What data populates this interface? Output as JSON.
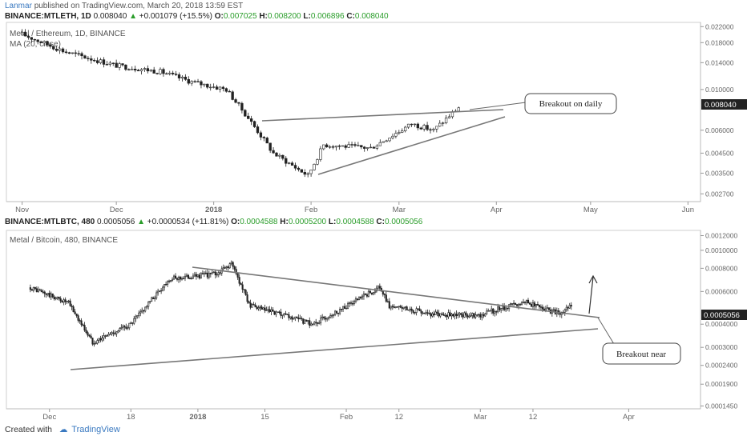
{
  "header": {
    "user": "Lanmar",
    "published_text": "published on TradingView.com, March 20, 2018 13:59 EST"
  },
  "panels": [
    {
      "symbol": "BINANCE:MTLETH, 1D",
      "last": "0.008040",
      "change": "+0.001079 (+15.5%)",
      "o": "0.007025",
      "h": "0.008200",
      "l": "0.006896",
      "c": "0.008040",
      "title": "Metal / Ethereum, 1D, BINANCE",
      "indicator": "MA (20, close)"
    },
    {
      "symbol": "BINANCE:MTLBTC, 480",
      "last": "0.0005056",
      "change": "+0.0000534 (+11.81%)",
      "o": "0.0004588",
      "h": "0.0005200",
      "l": "0.0004588",
      "c": "0.0005056",
      "title": "Metal / Bitcoin, 480, BINANCE"
    }
  ],
  "chart_data": [
    {
      "type": "candlestick",
      "title": "Metal / Ethereum, 1D, BINANCE",
      "y_scale": "log",
      "y_ticks": [
        "0.022000",
        "0.018000",
        "0.014000",
        "0.010000",
        "0.008040",
        "0.006000",
        "0.004500",
        "0.003500",
        "0.002700"
      ],
      "x_ticks": [
        "Nov",
        "Dec",
        "2018",
        "Feb",
        "Mar",
        "Apr",
        "May",
        "Jun"
      ],
      "last_value": "0.008040",
      "points": [
        [
          "2017-11-01",
          0.02
        ],
        [
          "2017-11-15",
          0.016
        ],
        [
          "2017-12-01",
          0.0135
        ],
        [
          "2017-12-15",
          0.0125
        ],
        [
          "2017-12-25",
          0.011
        ],
        [
          "2018-01-05",
          0.01
        ],
        [
          "2018-01-12",
          0.007
        ],
        [
          "2018-01-20",
          0.0045
        ],
        [
          "2018-01-31",
          0.0034
        ],
        [
          "2018-02-05",
          0.005
        ],
        [
          "2018-02-20",
          0.0048
        ],
        [
          "2018-03-05",
          0.0065
        ],
        [
          "2018-03-12",
          0.006
        ],
        [
          "2018-03-20",
          0.008
        ]
      ],
      "annotation": "Breakout on daily"
    },
    {
      "type": "candlestick",
      "title": "Metal / Bitcoin, 480, BINANCE",
      "y_scale": "log",
      "y_ticks": [
        "0.0012000",
        "0.0010000",
        "0.0008000",
        "0.0006000",
        "0.0005056",
        "0.0004000",
        "0.0003000",
        "0.0002400",
        "0.0001900",
        "0.0001450"
      ],
      "x_ticks": [
        "Dec",
        "18",
        "2018",
        "15",
        "Feb",
        "12",
        "Mar",
        "12",
        "Apr"
      ],
      "last_value": "0.0005056",
      "points": [
        [
          "2017-11-27",
          0.00063
        ],
        [
          "2017-12-05",
          0.00052
        ],
        [
          "2017-12-10",
          0.00032
        ],
        [
          "2017-12-18",
          0.0004
        ],
        [
          "2017-12-26",
          0.0007
        ],
        [
          "2018-01-05",
          0.00075
        ],
        [
          "2018-01-08",
          0.00085
        ],
        [
          "2018-01-12",
          0.0005
        ],
        [
          "2018-01-25",
          0.0004
        ],
        [
          "2018-02-01",
          0.0005
        ],
        [
          "2018-02-08",
          0.00063
        ],
        [
          "2018-02-10",
          0.0005
        ],
        [
          "2018-02-20",
          0.00045
        ],
        [
          "2018-03-01",
          0.00045
        ],
        [
          "2018-03-10",
          0.00053
        ],
        [
          "2018-03-18",
          0.00045
        ],
        [
          "2018-03-20",
          0.00051
        ]
      ],
      "annotation": "Breakout near"
    }
  ],
  "footer": {
    "created_with": "Created with",
    "brand": "TradingView"
  },
  "colors": {
    "axis_text": "#666666",
    "up_green": "#2a9d2a",
    "link_blue": "#3a79c0",
    "candle": "#222222",
    "trendline": "#777777"
  }
}
